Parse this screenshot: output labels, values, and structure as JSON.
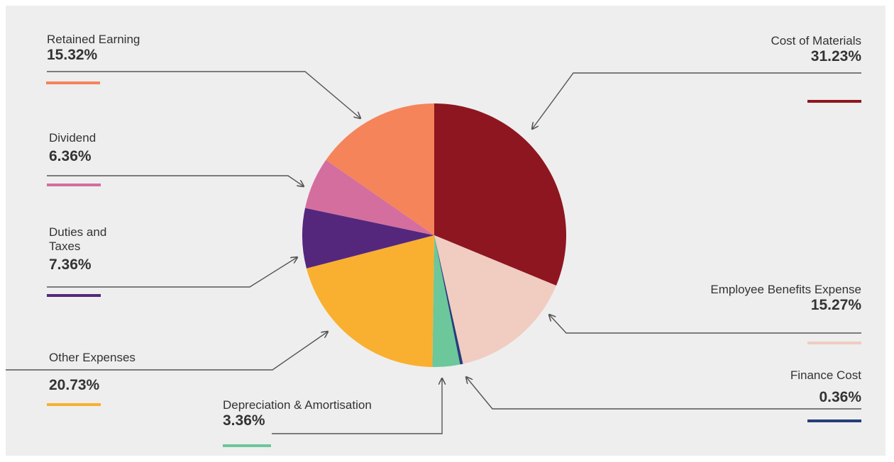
{
  "colors": {
    "background": "#eeeeee",
    "text": "#333333",
    "connector": "#555555"
  },
  "chart_data": {
    "type": "pie",
    "title": "",
    "slices": [
      {
        "label": "Cost of Materials",
        "value": 31.23,
        "display": "31.23%",
        "color": "#8e1620"
      },
      {
        "label": "Employee Benefits Expense",
        "value": 15.27,
        "display": "15.27%",
        "color": "#f1ccc1"
      },
      {
        "label": "Finance Cost",
        "value": 0.36,
        "display": "0.36%",
        "color": "#263d7c"
      },
      {
        "label": "Depreciation & Amortisation",
        "value": 3.36,
        "display": "3.36%",
        "color": "#6cc79a"
      },
      {
        "label": "Other Expenses",
        "value": 20.73,
        "display": "20.73%",
        "color": "#f9b030"
      },
      {
        "label": "Duties and Taxes",
        "label_lines": [
          "Duties and",
          "Taxes"
        ],
        "value": 7.36,
        "display": "7.36%",
        "color": "#54277d"
      },
      {
        "label": "Dividend",
        "value": 6.36,
        "display": "6.36%",
        "color": "#d46e9f"
      },
      {
        "label": "Retained Earning",
        "value": 15.32,
        "display": "15.32%",
        "color": "#f5845a"
      }
    ]
  }
}
